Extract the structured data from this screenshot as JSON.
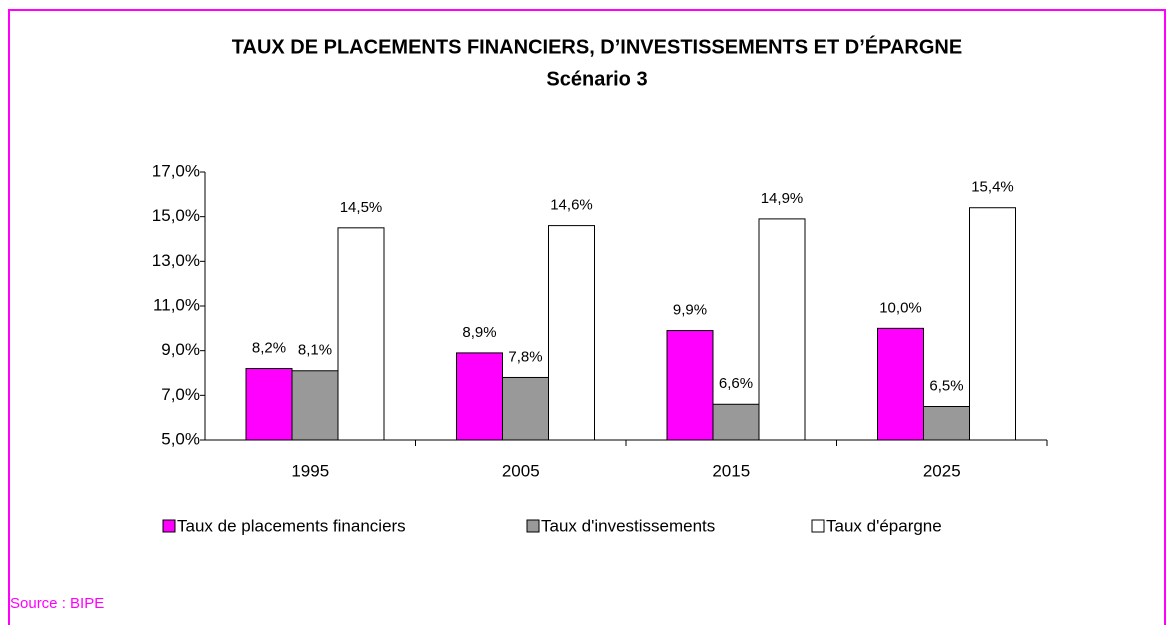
{
  "chart_data": {
    "type": "bar",
    "title": "TAUX DE PLACEMENTS FINANCIERS, D’INVESTISSEMENTS ET D’ÉPARGNE",
    "subtitle": "Scénario 3",
    "source": "Source : BIPE",
    "categories": [
      "1995",
      "2005",
      "2015",
      "2025"
    ],
    "series": [
      {
        "name": "Taux de placements financiers",
        "color": "#ff00ff",
        "values": [
          8.2,
          8.9,
          9.9,
          10.0
        ],
        "value_labels": [
          "8,2%",
          "8,9%",
          "9,9%",
          "10,0%"
        ]
      },
      {
        "name": "Taux d'investissements",
        "color": "#999999",
        "values": [
          8.1,
          7.8,
          6.6,
          6.5
        ],
        "value_labels": [
          "8,1%",
          "7,8%",
          "6,6%",
          "6,5%"
        ]
      },
      {
        "name": "Taux d'épargne",
        "color": "#ffffff",
        "values": [
          14.5,
          14.6,
          14.9,
          15.4
        ],
        "value_labels": [
          "14,5%",
          "14,6%",
          "14,9%",
          "15,4%"
        ]
      }
    ],
    "ylim": [
      5,
      17
    ],
    "yticks": [
      {
        "value": 5,
        "label": "5,0%"
      },
      {
        "value": 7,
        "label": "7,0%"
      },
      {
        "value": 9,
        "label": "9,0%"
      },
      {
        "value": 11,
        "label": "11,0%"
      },
      {
        "value": 13,
        "label": "13,0%"
      },
      {
        "value": 15,
        "label": "15,0%"
      },
      {
        "value": 17,
        "label": "17,0%"
      }
    ],
    "legend": "bottom",
    "grid": false
  }
}
